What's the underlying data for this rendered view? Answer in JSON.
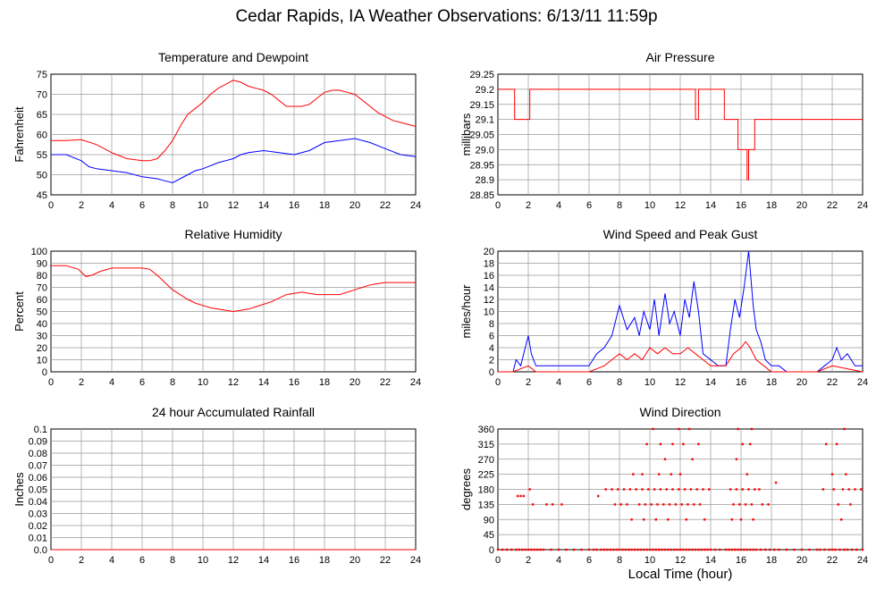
{
  "title": "Cedar Rapids, IA Weather Observations: 6/13/11 11:59p",
  "xlabel": "Local Time (hour)",
  "colors": {
    "red": "#ff0000",
    "blue": "#0000ff",
    "grid": "#999999"
  },
  "chart_data": [
    {
      "id": "temp",
      "type": "line",
      "title": "Temperature and Dewpoint",
      "ylabel": "Fahrenheit",
      "xlim": [
        0,
        24
      ],
      "ylim": [
        45,
        75
      ],
      "xticks": [
        "0",
        "2",
        "4",
        "6",
        "8",
        "10",
        "12",
        "14",
        "16",
        "18",
        "20",
        "22",
        "24"
      ],
      "yticks": [
        "45",
        "50",
        "55",
        "60",
        "65",
        "70",
        "75"
      ],
      "series": [
        {
          "color": "#ff0000",
          "x": [
            0,
            1,
            2,
            3,
            4,
            5,
            6,
            6.5,
            7,
            7.5,
            8,
            8.5,
            9,
            9.5,
            10,
            10.5,
            11,
            11.5,
            12,
            12.5,
            13,
            13.5,
            14,
            14.5,
            15,
            15.5,
            16,
            16.5,
            17,
            17.5,
            18,
            18.5,
            19,
            19.5,
            20,
            20.5,
            21,
            21.5,
            22,
            22.5,
            23,
            24
          ],
          "y": [
            58.5,
            58.5,
            58.7,
            57.5,
            55.5,
            54,
            53.5,
            53.5,
            54,
            56,
            58.5,
            62,
            65,
            66.5,
            68,
            70,
            71.5,
            72.5,
            73.5,
            73,
            72,
            71.5,
            71,
            70,
            68.5,
            67,
            67,
            67,
            67.5,
            69,
            70.5,
            71,
            71,
            70.5,
            70,
            68.5,
            67,
            65.5,
            64.5,
            63.5,
            63,
            62
          ]
        },
        {
          "color": "#0000ff",
          "x": [
            0,
            1,
            2,
            2.5,
            3,
            4,
            5,
            6,
            7,
            7.5,
            8,
            8.5,
            9,
            9.5,
            10,
            11,
            12,
            12.5,
            13,
            14,
            15,
            16,
            17,
            17.5,
            18,
            19,
            20,
            21,
            22,
            23,
            24
          ],
          "y": [
            55,
            55,
            53.5,
            52,
            51.5,
            51,
            50.5,
            49.5,
            49,
            48.5,
            48,
            49,
            50,
            51,
            51.5,
            53,
            54,
            55,
            55.5,
            56,
            55.5,
            55,
            56,
            57,
            58,
            58.5,
            59,
            58,
            56.5,
            55,
            54.5
          ]
        }
      ]
    },
    {
      "id": "pressure",
      "type": "line",
      "title": "Air Pressure",
      "ylabel": "millibars",
      "xlim": [
        0,
        24
      ],
      "ylim": [
        28.85,
        29.25
      ],
      "xticks": [
        "0",
        "2",
        "4",
        "6",
        "8",
        "10",
        "12",
        "14",
        "16",
        "18",
        "20",
        "22",
        "24"
      ],
      "yticks": [
        "28.85",
        "28.9",
        "28.95",
        "29.0",
        "29.05",
        "29.1",
        "29.15",
        "29.2",
        "29.25"
      ],
      "series": [
        {
          "color": "#ff0000",
          "x": [
            0,
            1.1,
            1.1,
            2.1,
            2.1,
            13,
            13,
            13.2,
            13.2,
            14.9,
            14.9,
            15.8,
            15.8,
            16.4,
            16.4,
            16.5,
            16.5,
            16.9,
            16.9,
            24
          ],
          "y": [
            29.2,
            29.2,
            29.1,
            29.1,
            29.2,
            29.2,
            29.1,
            29.1,
            29.2,
            29.2,
            29.1,
            29.1,
            29.0,
            29.0,
            28.9,
            28.9,
            29.0,
            29.0,
            29.1,
            29.1
          ]
        }
      ]
    },
    {
      "id": "rh",
      "type": "line",
      "title": "Relative Humidity",
      "ylabel": "Percent",
      "xlim": [
        0,
        24
      ],
      "ylim": [
        0,
        100
      ],
      "xticks": [
        "0",
        "2",
        "4",
        "6",
        "8",
        "10",
        "12",
        "14",
        "16",
        "18",
        "20",
        "22",
        "24"
      ],
      "yticks": [
        "0",
        "10",
        "20",
        "30",
        "40",
        "50",
        "60",
        "70",
        "80",
        "90",
        "100"
      ],
      "series": [
        {
          "color": "#ff0000",
          "x": [
            0,
            1,
            1.8,
            2.3,
            2.7,
            3.2,
            4,
            5,
            6,
            6.5,
            7,
            7.5,
            8,
            8.5,
            9,
            9.5,
            10,
            10.5,
            11,
            11.5,
            12,
            12.5,
            13,
            13.5,
            14,
            14.5,
            15,
            15.5,
            16,
            16.5,
            17,
            17.5,
            18,
            19,
            19.5,
            20,
            20.5,
            21,
            21.5,
            22,
            23,
            24
          ],
          "y": [
            88,
            88,
            85,
            79,
            80,
            83,
            86,
            86,
            86,
            85,
            80,
            74,
            68,
            64,
            60,
            57,
            55,
            53,
            52,
            51,
            50,
            51,
            52,
            54,
            56,
            58,
            61,
            64,
            65,
            66,
            65,
            64,
            64,
            64,
            66,
            68,
            70,
            72,
            73,
            74,
            74,
            74
          ]
        }
      ]
    },
    {
      "id": "wind",
      "type": "line",
      "title": "Wind Speed and Peak Gust",
      "ylabel": "miles/hour",
      "xlim": [
        0,
        24
      ],
      "ylim": [
        0,
        20
      ],
      "xticks": [
        "0",
        "2",
        "4",
        "6",
        "8",
        "10",
        "12",
        "14",
        "16",
        "18",
        "20",
        "22",
        "24"
      ],
      "yticks": [
        "0",
        "2",
        "4",
        "6",
        "8",
        "10",
        "12",
        "14",
        "16",
        "18",
        "20"
      ],
      "series": [
        {
          "color": "#0000ff",
          "x": [
            0,
            1,
            1.2,
            1.5,
            1.8,
            2,
            2.2,
            2.5,
            3,
            4,
            5,
            6,
            6.5,
            7,
            7.5,
            7.8,
            8,
            8.5,
            9,
            9.3,
            9.6,
            10,
            10.3,
            10.6,
            11,
            11.3,
            11.6,
            12,
            12.3,
            12.6,
            12.9,
            13.2,
            13.5,
            14,
            14.5,
            15,
            15.3,
            15.6,
            15.9,
            16.2,
            16.5,
            16.8,
            17,
            17.3,
            17.6,
            18,
            18.5,
            19,
            20,
            21,
            21.5,
            22,
            22.3,
            22.6,
            23,
            23.5,
            24
          ],
          "y": [
            0,
            0,
            2,
            1,
            4,
            6,
            3,
            1,
            1,
            1,
            1,
            1,
            3,
            4,
            6,
            9,
            11,
            7,
            9,
            6,
            10,
            7,
            12,
            6,
            13,
            8,
            10,
            6,
            12,
            9,
            15,
            10,
            3,
            2,
            1,
            1,
            7,
            12,
            9,
            14,
            20,
            11,
            7,
            5,
            2,
            1,
            1,
            0,
            0,
            0,
            1,
            2,
            4,
            2,
            3,
            1,
            1
          ]
        },
        {
          "color": "#ff0000",
          "x": [
            0,
            1,
            2,
            2.5,
            6,
            7,
            7.5,
            8,
            8.5,
            9,
            9.5,
            10,
            10.5,
            11,
            11.5,
            12,
            12.5,
            13,
            13.5,
            14,
            15,
            15.5,
            16,
            16.3,
            16.6,
            17,
            17.5,
            18,
            21,
            22,
            24
          ],
          "y": [
            0,
            0,
            1,
            0,
            0,
            1,
            2,
            3,
            2,
            3,
            2,
            4,
            3,
            4,
            3,
            3,
            4,
            3,
            2,
            1,
            1,
            3,
            4,
            5,
            4,
            2,
            1,
            0,
            0,
            1,
            0
          ]
        }
      ]
    },
    {
      "id": "rain",
      "type": "line",
      "title": "24 hour Accumulated Rainfall",
      "ylabel": "Inches",
      "xlim": [
        0,
        24
      ],
      "ylim": [
        0,
        0.1
      ],
      "xticks": [
        "0",
        "2",
        "4",
        "6",
        "8",
        "10",
        "12",
        "14",
        "16",
        "18",
        "20",
        "22",
        "24"
      ],
      "yticks": [
        "0.0",
        "0.01",
        "0.02",
        "0.03",
        "0.04",
        "0.05",
        "0.06",
        "0.07",
        "0.08",
        "0.09",
        "0.1"
      ],
      "series": [
        {
          "color": "#ff0000",
          "x": [
            0,
            24
          ],
          "y": [
            0,
            0
          ]
        }
      ]
    },
    {
      "id": "wdir",
      "type": "scatter",
      "title": "Wind Direction",
      "ylabel": "degrees",
      "xlim": [
        0,
        24
      ],
      "ylim": [
        0,
        360
      ],
      "xticks": [
        "0",
        "2",
        "4",
        "6",
        "8",
        "10",
        "12",
        "14",
        "16",
        "18",
        "20",
        "22",
        "24"
      ],
      "yticks": [
        "0",
        "45",
        "90",
        "135",
        "180",
        "225",
        "270",
        "315",
        "360"
      ],
      "series": [
        {
          "color": "#ff0000",
          "x": [
            0,
            0.3,
            0.6,
            0.9,
            1.2,
            1.4,
            1.6,
            1.8,
            2.0,
            2.2,
            2.4,
            2.6,
            2.8,
            3.0,
            3.5,
            4.0,
            4.5,
            5.0,
            5.5,
            6.0,
            6.3,
            6.5,
            6.8,
            7.0,
            7.2,
            7.4,
            7.6,
            7.8,
            8.0,
            8.2,
            8.4,
            8.6,
            8.8,
            9.0,
            9.2,
            9.4,
            9.6,
            9.8,
            10.0,
            10.2,
            10.4,
            10.6,
            10.8,
            11.0,
            11.2,
            11.4,
            11.6,
            11.8,
            12.0,
            12.2,
            12.4,
            12.6,
            12.8,
            13.0,
            13.2,
            13.4,
            13.6,
            13.8,
            14.0,
            14.3,
            14.6,
            15.0,
            15.2,
            15.4,
            15.6,
            15.8,
            16.0,
            16.2,
            16.4,
            16.6,
            16.8,
            17.0,
            17.3,
            17.6,
            17.9,
            18.2,
            18.5,
            19.0,
            19.5,
            20.0,
            20.5,
            21.0,
            21.2,
            21.5,
            21.8,
            22.0,
            22.2,
            22.5,
            22.8,
            23.0,
            23.3,
            23.6,
            24.0,
            1.3,
            1.5,
            1.7,
            2.1,
            2.3,
            3.2,
            3.6,
            4.2,
            6.6,
            7.1,
            7.5,
            7.9,
            8.3,
            8.7,
            9.1,
            9.5,
            9.9,
            10.3,
            10.7,
            11.1,
            11.5,
            11.9,
            12.3,
            12.7,
            13.1,
            13.5,
            13.9,
            15.3,
            15.7,
            16.1,
            16.5,
            16.9,
            17.2,
            18.3,
            21.4,
            22.1,
            22.7,
            23.1,
            23.5,
            23.9,
            7.7,
            8.1,
            8.5,
            9.3,
            9.7,
            10.1,
            10.5,
            10.9,
            11.3,
            11.7,
            12.1,
            12.5,
            12.9,
            13.3,
            15.5,
            15.9,
            16.3,
            16.7,
            17.4,
            17.8,
            22.4,
            23.2,
            8.9,
            9.5,
            10.6,
            11.0,
            11.4,
            12.0,
            12.8,
            15.7,
            16.4,
            22.0,
            22.9,
            8.8,
            9.6,
            10.4,
            11.2,
            12.4,
            13.6,
            15.4,
            16.0,
            16.8,
            22.6,
            9.8,
            10.7,
            11.5,
            12.2,
            13.2,
            16.1,
            16.6,
            21.6,
            22.3,
            10.2,
            11.9,
            12.6,
            15.8,
            16.7,
            22.8
          ],
          "y": [
            0,
            0,
            0,
            0,
            0,
            0,
            0,
            0,
            0,
            0,
            0,
            0,
            0,
            0,
            0,
            0,
            0,
            0,
            0,
            0,
            0,
            0,
            0,
            0,
            0,
            0,
            0,
            0,
            0,
            0,
            0,
            0,
            0,
            0,
            0,
            0,
            0,
            0,
            0,
            0,
            0,
            0,
            0,
            0,
            0,
            0,
            0,
            0,
            0,
            0,
            0,
            0,
            0,
            0,
            0,
            0,
            0,
            0,
            0,
            0,
            0,
            0,
            0,
            0,
            0,
            0,
            0,
            0,
            0,
            0,
            0,
            0,
            0,
            0,
            0,
            0,
            0,
            0,
            0,
            0,
            0,
            0,
            0,
            0,
            0,
            0,
            0,
            0,
            0,
            0,
            0,
            0,
            0,
            160,
            160,
            160,
            180,
            135,
            135,
            135,
            135,
            160,
            180,
            180,
            180,
            180,
            180,
            180,
            180,
            180,
            180,
            180,
            180,
            180,
            180,
            180,
            180,
            180,
            180,
            180,
            180,
            180,
            180,
            180,
            180,
            180,
            200,
            180,
            180,
            180,
            180,
            180,
            180,
            135,
            135,
            135,
            135,
            135,
            135,
            135,
            135,
            135,
            135,
            135,
            135,
            135,
            135,
            135,
            135,
            135,
            135,
            135,
            135,
            135,
            135,
            225,
            225,
            225,
            270,
            225,
            225,
            270,
            270,
            225,
            225,
            225,
            90,
            90,
            90,
            90,
            90,
            90,
            90,
            90,
            90,
            90,
            315,
            315,
            315,
            315,
            315,
            315,
            315,
            315,
            315,
            360,
            360,
            360,
            360,
            360,
            360
          ]
        }
      ]
    }
  ]
}
